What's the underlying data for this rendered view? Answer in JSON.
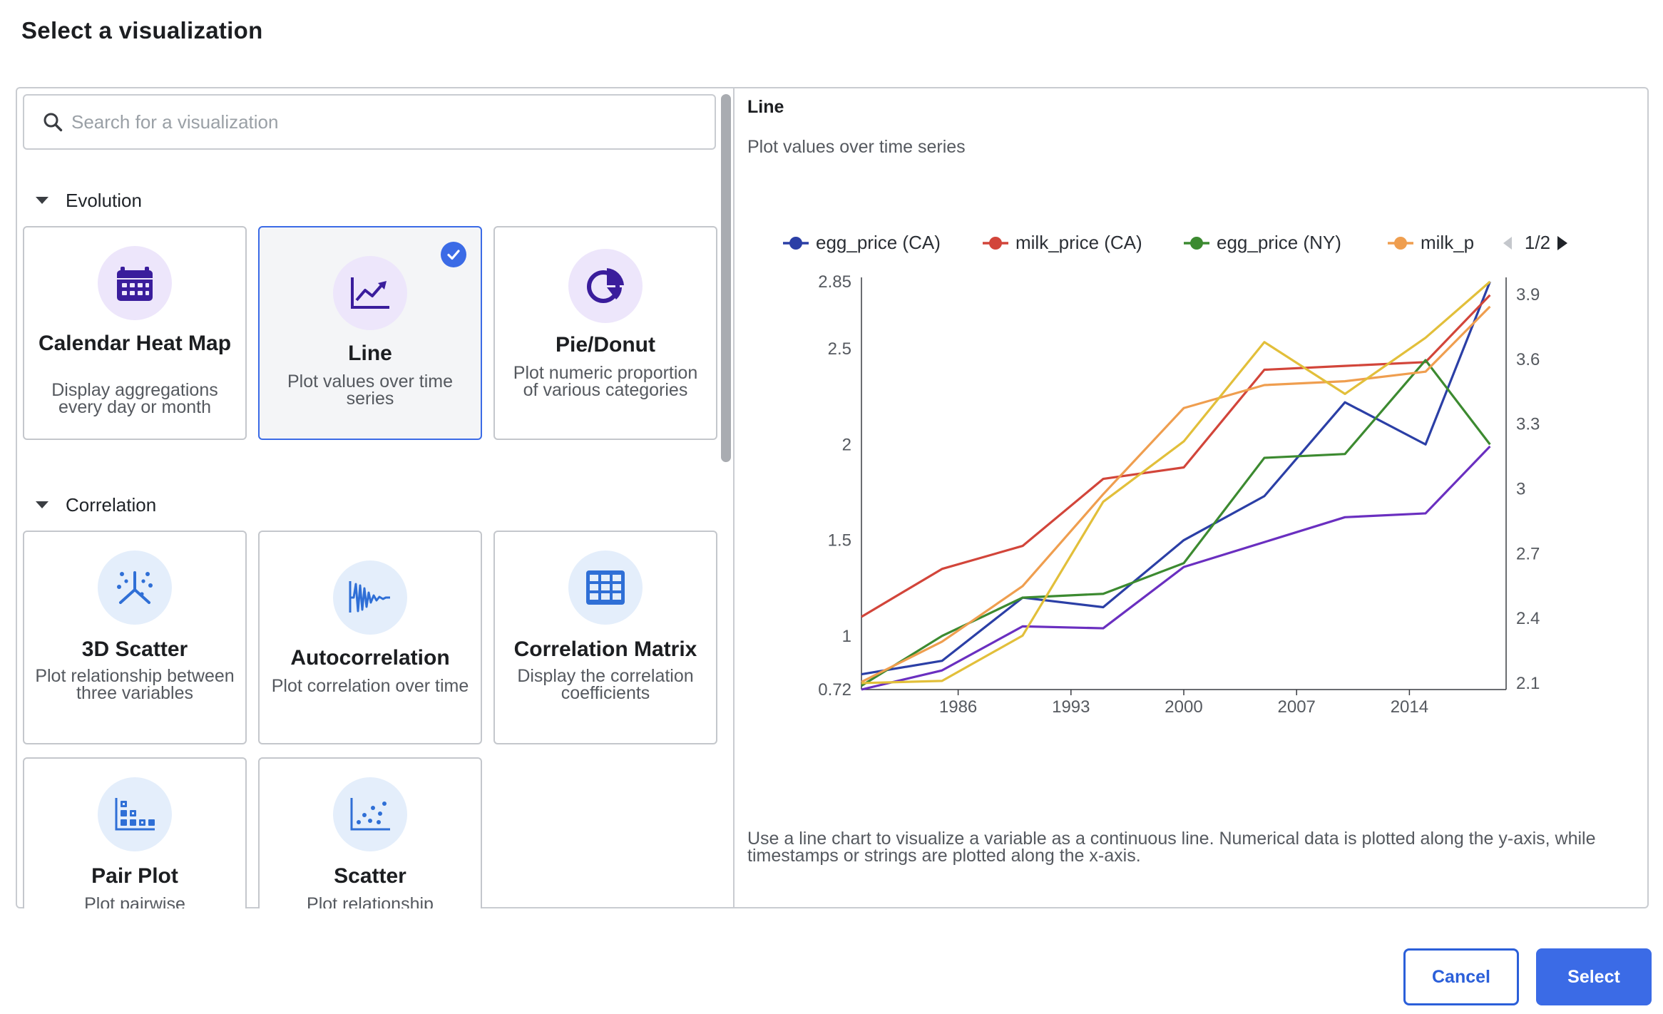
{
  "dialog": {
    "title": "Select a visualization"
  },
  "search": {
    "placeholder": "Search for a visualization",
    "value": ""
  },
  "sections": [
    {
      "label": "Evolution"
    },
    {
      "label": "Correlation"
    }
  ],
  "cards": [
    {
      "title": "Calendar Heat Map",
      "desc": "Display aggregations every day or month",
      "icon": "calendar-icon"
    },
    {
      "title": "Line",
      "desc": "Plot values over time series",
      "icon": "line-chart-icon",
      "selected": true
    },
    {
      "title": "Pie/Donut",
      "desc": "Plot numeric proportion of various categories",
      "icon": "pie-chart-icon"
    },
    {
      "title": "3D Scatter",
      "desc": "Plot relationship between three variables",
      "icon": "3d-scatter-icon"
    },
    {
      "title": "Autocorrelation",
      "desc": "Plot correlation over time",
      "icon": "autocorrelation-icon"
    },
    {
      "title": "Correlation Matrix",
      "desc": "Display the correlation coefficients",
      "icon": "grid-icon"
    },
    {
      "title": "Pair Plot",
      "desc": "Plot pairwise",
      "icon": "pair-plot-icon"
    },
    {
      "title": "Scatter",
      "desc": "Plot relationship",
      "icon": "scatter-icon"
    }
  ],
  "preview": {
    "title": "Line",
    "subtitle": "Plot values over time series",
    "description": "Use a line chart to visualize a variable as a continuous line. Numerical data is plotted along the y-axis, while timestamps or strings are plotted along the x-axis."
  },
  "chart_data": {
    "type": "line",
    "title": "",
    "xlabel": "",
    "ylabel": "",
    "legend_position": "top",
    "legend_page": "1/2",
    "x": [
      1980,
      1985,
      1990,
      1995,
      2000,
      2005,
      2010,
      2015,
      2019
    ],
    "x_ticks": [
      "1986",
      "1993",
      "2000",
      "2007",
      "2014"
    ],
    "x_tick_values": [
      1986,
      1993,
      2000,
      2007,
      2014
    ],
    "xlim": [
      1980,
      2020
    ],
    "y_left_ticks": [
      "0.72",
      "1",
      "1.5",
      "2",
      "2.5",
      "2.85"
    ],
    "y_left_tick_values": [
      0.72,
      1,
      1.5,
      2,
      2.5,
      2.85
    ],
    "y_left_lim": [
      0.72,
      2.85
    ],
    "y_right_ticks": [
      "2.1",
      "2.4",
      "2.7",
      "3",
      "3.3",
      "3.6",
      "3.9"
    ],
    "y_right_tick_values": [
      2.1,
      2.4,
      2.7,
      3,
      3.3,
      3.6,
      3.9
    ],
    "y_right_lim": [
      2.07,
      3.96
    ],
    "grid": false,
    "legend": [
      {
        "name": "egg_price (CA)",
        "color": "#2b3fa6"
      },
      {
        "name": "milk_price (CA)",
        "color": "#d2453a"
      },
      {
        "name": "egg_price (NY)",
        "color": "#3c8a30"
      },
      {
        "name": "milk_p",
        "color": "#ef9e4f"
      }
    ],
    "series": [
      {
        "name": "egg_price (CA)",
        "color": "#2b3fa6",
        "axis": "left",
        "values": [
          0.8,
          0.87,
          1.2,
          1.15,
          1.5,
          1.73,
          2.22,
          2.0,
          2.85
        ]
      },
      {
        "name": "milk_price (CA)",
        "color": "#d2453a",
        "axis": "left",
        "values": [
          1.1,
          1.35,
          1.47,
          1.82,
          1.88,
          2.39,
          2.41,
          2.43,
          2.78
        ]
      },
      {
        "name": "egg_price (NY)",
        "color": "#3c8a30",
        "axis": "left",
        "values": [
          0.74,
          1.0,
          1.2,
          1.22,
          1.38,
          1.93,
          1.95,
          2.44,
          2.0
        ]
      },
      {
        "name": "milk_p",
        "color": "#ef9e4f",
        "axis": "left",
        "values": [
          0.76,
          0.97,
          1.26,
          1.74,
          2.19,
          2.31,
          2.33,
          2.38,
          2.72
        ]
      },
      {
        "color": "#6a2fc0",
        "axis": "left",
        "values": [
          0.72,
          0.82,
          1.05,
          1.04,
          1.36,
          1.49,
          1.62,
          1.64,
          1.99
        ]
      },
      {
        "color": "#e2bf3a",
        "axis": "right",
        "values": [
          2.1,
          2.11,
          2.32,
          2.94,
          3.22,
          3.68,
          3.44,
          3.7,
          3.96
        ]
      }
    ]
  },
  "buttons": {
    "cancel": "Cancel",
    "select": "Select"
  }
}
